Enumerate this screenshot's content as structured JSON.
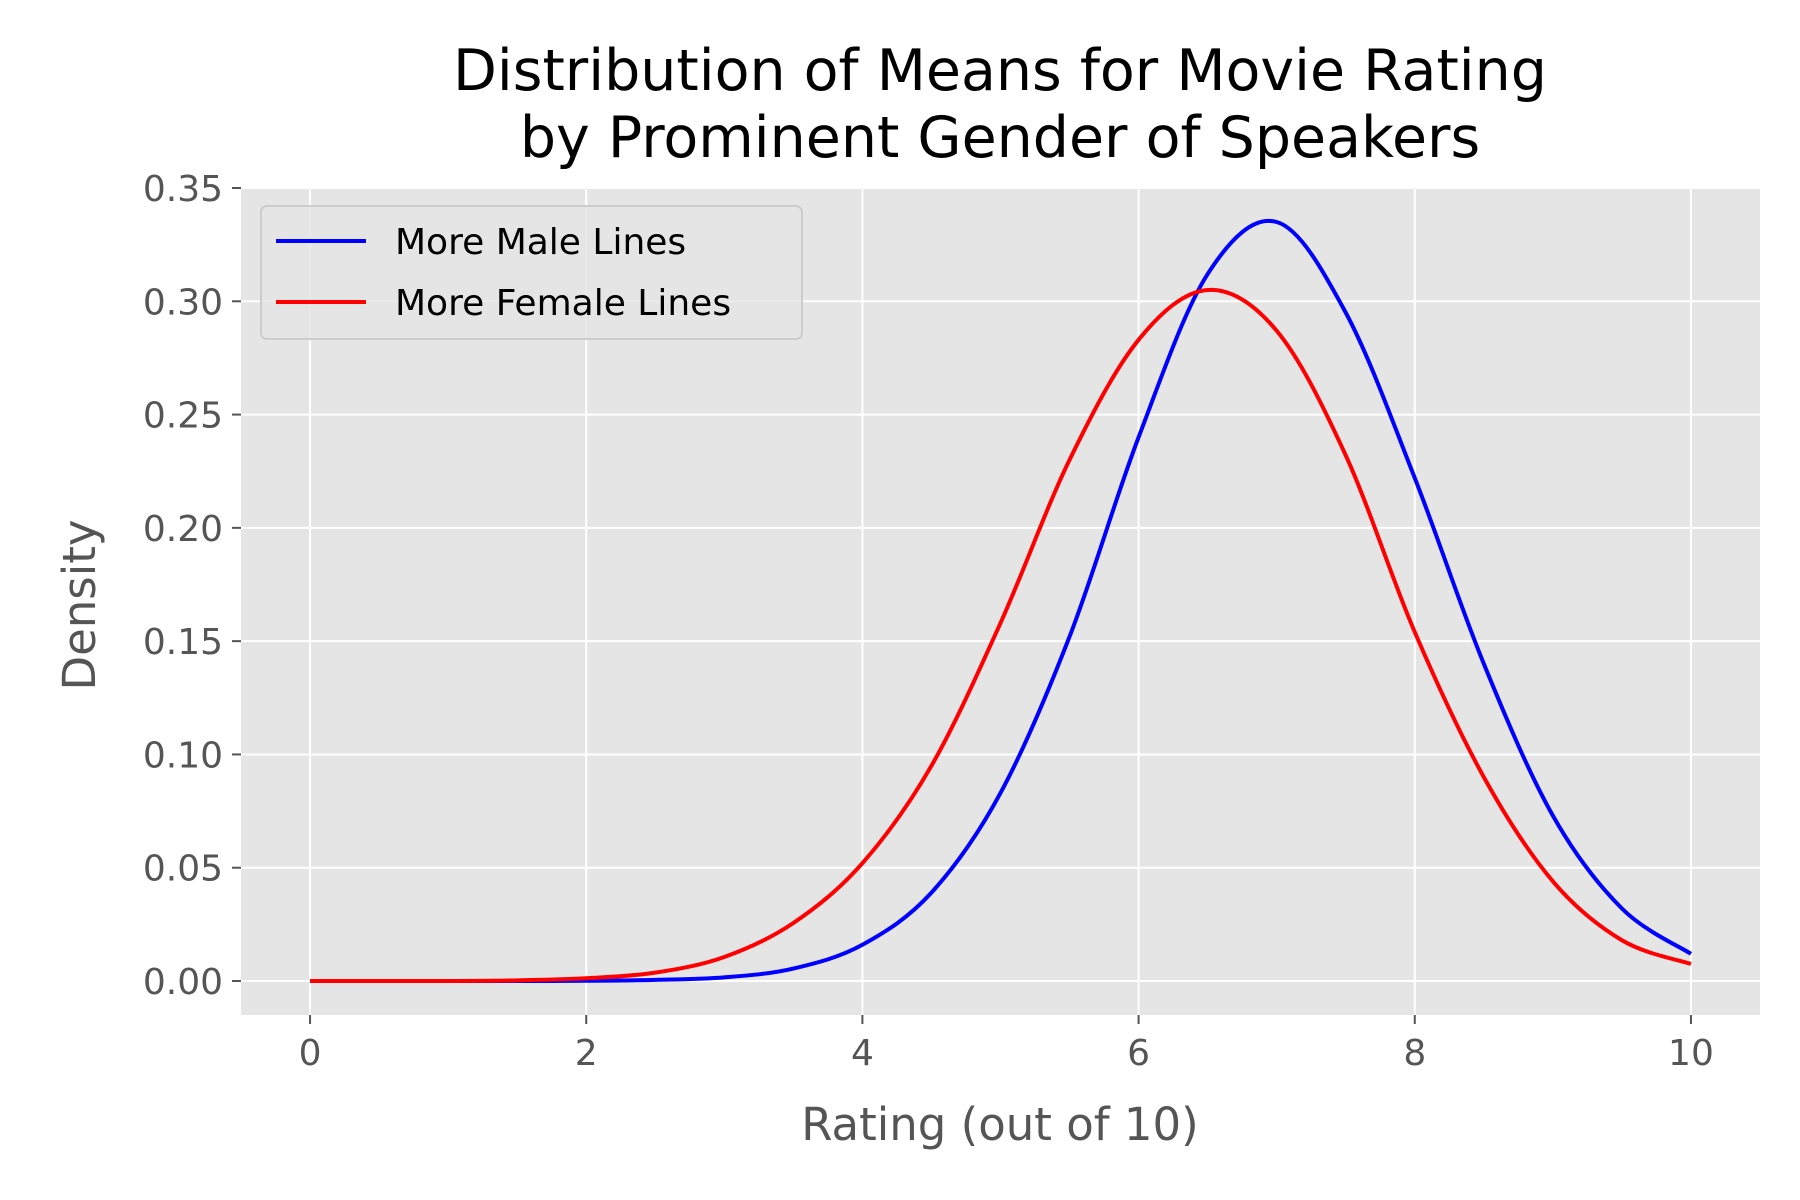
{
  "chart_data": {
    "type": "line",
    "title": [
      "Distribution of Means for Movie Rating",
      "by Prominent Gender of Speakers"
    ],
    "xlabel": "Rating (out of 10)",
    "ylabel": "Density",
    "xlim": [
      -0.5,
      10.5
    ],
    "ylim": [
      -0.015,
      0.35
    ],
    "xticks": [
      0,
      2,
      4,
      6,
      8,
      10
    ],
    "xtick_labels": [
      "0",
      "2",
      "4",
      "6",
      "8",
      "10"
    ],
    "yticks": [
      0.0,
      0.05,
      0.1,
      0.15,
      0.2,
      0.25,
      0.3,
      0.35
    ],
    "ytick_labels": [
      "0.00",
      "0.05",
      "0.10",
      "0.15",
      "0.20",
      "0.25",
      "0.30",
      "0.35"
    ],
    "grid": true,
    "legend_position": "top-left",
    "series": [
      {
        "name": "More Male Lines",
        "color": "#0000ff",
        "x": [
          0,
          0.5,
          1,
          1.5,
          2,
          2.5,
          3,
          3.5,
          4,
          4.5,
          5,
          5.5,
          6,
          6.5,
          7,
          7.5,
          8,
          8.5,
          9,
          9.5,
          10
        ],
        "y": [
          0.0,
          0.0,
          0.0,
          0.0,
          0.0001,
          0.0005,
          0.0016,
          0.0055,
          0.016,
          0.039,
          0.083,
          0.152,
          0.24,
          0.312,
          0.335,
          0.295,
          0.222,
          0.14,
          0.073,
          0.032,
          0.012
        ]
      },
      {
        "name": "More Female Lines",
        "color": "#ff0000",
        "x": [
          0,
          0.5,
          1,
          1.5,
          2,
          2.5,
          3,
          3.5,
          4,
          4.5,
          5,
          5.5,
          6,
          6.5,
          7,
          7.5,
          8,
          8.5,
          9,
          9.5,
          10
        ],
        "y": [
          0.0,
          0.0,
          0.0,
          0.0003,
          0.0012,
          0.0037,
          0.0106,
          0.0256,
          0.052,
          0.095,
          0.158,
          0.23,
          0.283,
          0.305,
          0.287,
          0.232,
          0.154,
          0.09,
          0.044,
          0.018,
          0.0075
        ]
      }
    ]
  }
}
